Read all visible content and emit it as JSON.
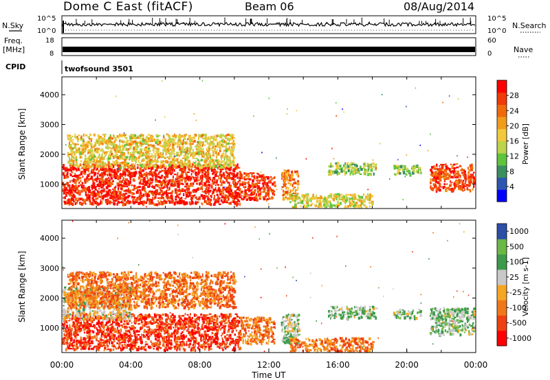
{
  "header": {
    "station": "Dome C East (fitACF)",
    "beam": "Beam 06",
    "date": "08/Aug/2014"
  },
  "strips": {
    "nsky_label": "N.Sky",
    "nsearch_label": "N.Search",
    "noise_ticks_top": "10^5",
    "noise_ticks_bottom": "10^0",
    "freq_label_1": "Freq.",
    "freq_label_2": "[MHz]",
    "freq_ticks_top": "18",
    "freq_ticks_bottom": "8",
    "nave_label": "Nave",
    "nave_ticks_top": "60",
    "nave_ticks_bottom": "0",
    "cpid_label": "CPID",
    "cpid_value": "twofsound 3501"
  },
  "chart_data": [
    {
      "type": "heatmap",
      "quantity": "Power",
      "ylabel": "Slant Range [km]",
      "ylim": [
        180,
        4600
      ],
      "yticks": [
        1000,
        2000,
        3000,
        4000
      ],
      "colorbar_label": "Power [dB]",
      "colorbar_ticks": [
        "4",
        "8",
        "12",
        "16",
        "20",
        "24",
        "28"
      ],
      "colors": [
        "#0000ff",
        "#2d56b0",
        "#3b8e60",
        "#5ec43c",
        "#bcd34a",
        "#f2c93a",
        "#f29c1c",
        "#f06a0c",
        "#f03a08",
        "#ff0000"
      ],
      "regions": [
        {
          "t0": 0.0,
          "t1": 10.3,
          "r0": 350,
          "r1": 1700,
          "level": 0.9
        },
        {
          "t0": 0.3,
          "t1": 10.0,
          "r0": 1600,
          "r1": 2700,
          "level": 0.55
        },
        {
          "t0": 10.3,
          "t1": 12.3,
          "r0": 500,
          "r1": 1400,
          "level": 0.85
        },
        {
          "t0": 12.7,
          "t1": 13.7,
          "r0": 500,
          "r1": 1500,
          "level": 0.7
        },
        {
          "t0": 13.2,
          "t1": 18.0,
          "r0": 250,
          "r1": 700,
          "level": 0.5
        },
        {
          "t0": 15.4,
          "t1": 18.2,
          "r0": 1350,
          "r1": 1750,
          "level": 0.4
        },
        {
          "t0": 19.2,
          "t1": 20.8,
          "r0": 1350,
          "r1": 1650,
          "level": 0.4
        },
        {
          "t0": 21.3,
          "t1": 23.9,
          "r0": 800,
          "r1": 1700,
          "level": 0.85
        }
      ]
    },
    {
      "type": "heatmap",
      "quantity": "Velocity",
      "xlabel": "Time UT",
      "ylabel": "Slant Range [km]",
      "xlim": [
        0,
        24
      ],
      "xticks": [
        "00:00",
        "04:00",
        "08:00",
        "12:00",
        "16:00",
        "20:00",
        "00:00"
      ],
      "ylim": [
        180,
        4600
      ],
      "yticks": [
        1000,
        2000,
        3000,
        4000
      ],
      "colorbar_label": "Velocity [m s-1]",
      "colorbar_ticks": [
        "1000",
        "500",
        "100",
        "25",
        "-25",
        "-100",
        "-500",
        "-1000"
      ],
      "colors": [
        "#ff0000",
        "#f04010",
        "#f07818",
        "#f5a623",
        "#c8c8c8",
        "#3d9a4c",
        "#6ab845",
        "#2e4fa8"
      ],
      "regions": [
        {
          "t0": 0.0,
          "t1": 10.3,
          "r0": 300,
          "r1": 1500,
          "level": 0.15
        },
        {
          "t0": 0.0,
          "t1": 4.0,
          "r0": 1300,
          "r1": 2400,
          "level": 0.5
        },
        {
          "t0": 0.3,
          "t1": 10.0,
          "r0": 1700,
          "r1": 2900,
          "level": 0.3
        },
        {
          "t0": 10.3,
          "t1": 12.3,
          "r0": 500,
          "r1": 1400,
          "level": 0.3
        },
        {
          "t0": 12.7,
          "t1": 13.7,
          "r0": 500,
          "r1": 1500,
          "level": 0.6
        },
        {
          "t0": 13.2,
          "t1": 18.0,
          "r0": 250,
          "r1": 700,
          "level": 0.3
        },
        {
          "t0": 15.4,
          "t1": 18.2,
          "r0": 1350,
          "r1": 1750,
          "level": 0.65
        },
        {
          "t0": 19.2,
          "t1": 20.8,
          "r0": 1350,
          "r1": 1650,
          "level": 0.65
        },
        {
          "t0": 21.3,
          "t1": 23.9,
          "r0": 800,
          "r1": 1700,
          "level": 0.65
        }
      ]
    }
  ]
}
